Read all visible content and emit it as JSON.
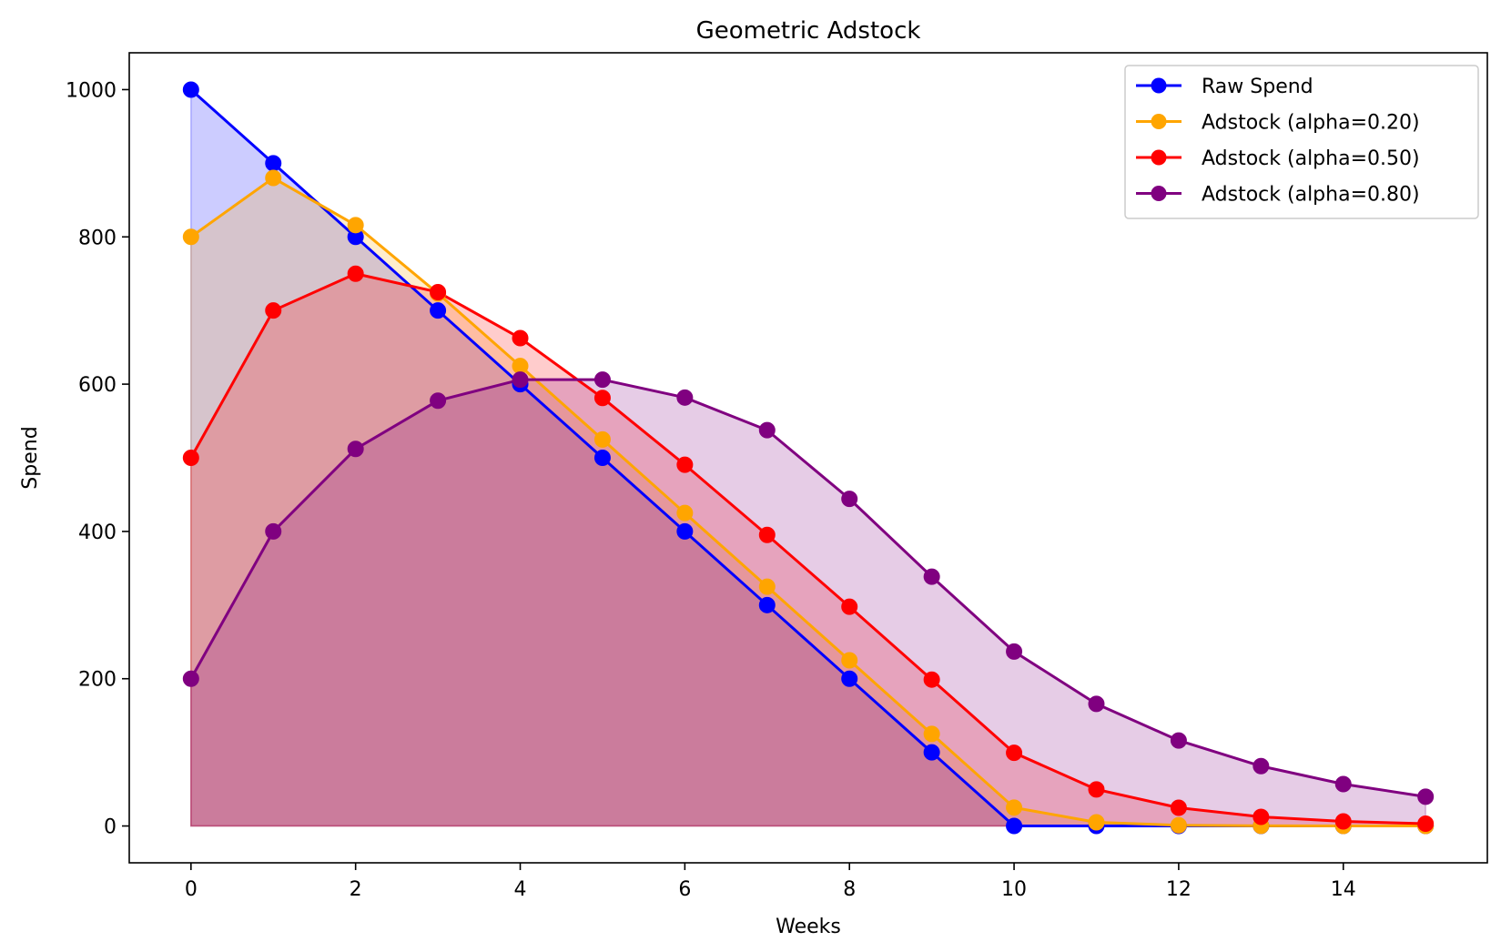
{
  "chart_data": {
    "type": "line",
    "title": "Geometric Adstock",
    "xlabel": "Weeks",
    "ylabel": "Spend",
    "xlim": [
      -0.75,
      15.75
    ],
    "ylim": [
      -50,
      1050
    ],
    "xticks": [
      0,
      2,
      4,
      6,
      8,
      10,
      12,
      14
    ],
    "yticks": [
      0,
      200,
      400,
      600,
      800,
      1000
    ],
    "grid": false,
    "legend_position": "top-right",
    "x": [
      0,
      1,
      2,
      3,
      4,
      5,
      6,
      7,
      8,
      9,
      10,
      11,
      12,
      13,
      14,
      15
    ],
    "series": [
      {
        "name": "Raw Spend",
        "color": "#0000ff",
        "fill": true,
        "values": [
          1000,
          900,
          800,
          700,
          600,
          500,
          400,
          300,
          200,
          100,
          0,
          0,
          0,
          0,
          0,
          0
        ]
      },
      {
        "name": "Adstock (alpha=0.20)",
        "color": "#ffa500",
        "fill": true,
        "values": [
          800,
          880,
          816,
          723.2,
          624.6,
          524.9,
          425,
          325,
          225,
          125,
          25,
          5,
          1,
          0.2,
          0.04,
          0.01
        ]
      },
      {
        "name": "Adstock (alpha=0.50)",
        "color": "#ff0000",
        "fill": true,
        "values": [
          500,
          700,
          750,
          725,
          662.5,
          581.3,
          490.6,
          395.3,
          297.7,
          198.8,
          99.4,
          49.7,
          24.8,
          12.4,
          6.2,
          3.1
        ]
      },
      {
        "name": "Adstock (alpha=0.80)",
        "color": "#800080",
        "fill": true,
        "values": [
          200,
          400,
          512,
          577.6,
          606.1,
          606.1,
          581.8,
          537.5,
          444.2,
          338.5,
          236.9,
          165.8,
          116.1,
          81.3,
          56.9,
          39.8
        ]
      }
    ]
  }
}
